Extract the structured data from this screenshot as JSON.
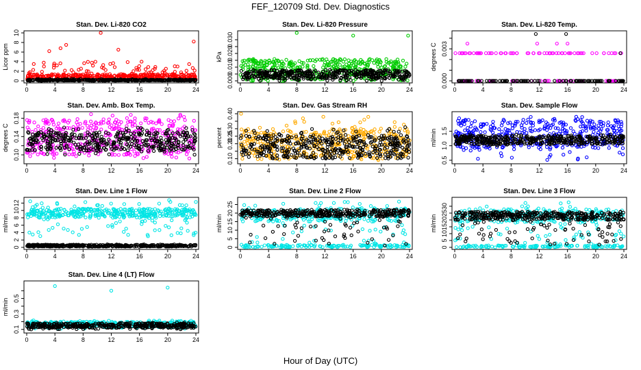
{
  "figure": {
    "title": "FEF_120709  Std. Dev. Diagnostics",
    "x_axis_title": "Hour of Day (UTC)"
  },
  "chart_data": [
    {
      "type": "scatter",
      "title": "Stan. Dev. Li-820 CO2",
      "ylabel": "Licor ppm",
      "xlim": [
        0,
        24
      ],
      "ylim": [
        0,
        10
      ],
      "xticks": [
        0,
        4,
        8,
        12,
        16,
        20,
        24
      ],
      "yticks": [
        0,
        2,
        4,
        6,
        8,
        10
      ],
      "series": [
        {
          "color": "#ff0000",
          "band": [
            0.3,
            1.4
          ],
          "noise": [
            0.8,
            4.0
          ],
          "outliers": [
            [
              10.5,
              10.0
            ],
            [
              23.7,
              8.2
            ],
            [
              4.8,
              6.8
            ],
            [
              5.6,
              7.5
            ],
            [
              13.0,
              6.5
            ],
            [
              3.2,
              6.2
            ]
          ]
        },
        {
          "color": "#000000",
          "band": [
            0.05,
            0.25
          ],
          "noise": [
            0.0,
            0.4
          ],
          "outliers": []
        }
      ]
    },
    {
      "type": "scatter",
      "title": "Stan. Dev. Li-820 Pressure",
      "ylabel": "kPa",
      "xlim": [
        0,
        24
      ],
      "ylim": [
        0,
        0.035
      ],
      "xticks": [
        0,
        4,
        8,
        12,
        16,
        20,
        24
      ],
      "yticks": [
        0,
        0.005,
        0.01,
        0.015,
        0.02,
        0.025,
        0.03
      ],
      "ytick_labels": [
        "0.000",
        "",
        "0.010",
        "",
        "0.020",
        "",
        "0.030"
      ],
      "series": [
        {
          "color": "#00cc00",
          "band": [
            0.004,
            0.016
          ],
          "noise": [
            0.0,
            0.003
          ],
          "outliers": [
            [
              8.0,
              0.035
            ],
            [
              16.0,
              0.033
            ],
            [
              23.8,
              0.033
            ]
          ]
        },
        {
          "color": "#000000",
          "band": [
            0.002,
            0.008
          ],
          "noise": [
            0.0,
            0.004
          ],
          "outliers": []
        }
      ]
    },
    {
      "type": "scatter",
      "title": "Stan. Dev. Li-820 Temp.",
      "ylabel": "degrees C",
      "xlim": [
        0,
        24
      ],
      "ylim": [
        0,
        0.0045
      ],
      "xticks": [
        0,
        4,
        8,
        12,
        16,
        20,
        24
      ],
      "yticks": [
        0,
        0.001,
        0.002,
        0.003,
        0.004
      ],
      "ytick_labels": [
        "0.000",
        "",
        "",
        "0.003",
        ""
      ],
      "series": [
        {
          "color": "#ff00ff",
          "levels": [
            0.0,
            0.0026
          ],
          "outliers": [
            [
              1.8,
              0.0035
            ],
            [
              11.7,
              0.0035
            ],
            [
              14.5,
              0.0035
            ],
            [
              16.0,
              0.0035
            ]
          ]
        },
        {
          "color": "#000000",
          "levels": [
            0.0
          ],
          "outliers": [
            [
              11.5,
              0.0044
            ],
            [
              15.8,
              0.0044
            ],
            [
              23.5,
              0.0026
            ]
          ]
        }
      ]
    },
    {
      "type": "scatter",
      "title": "Stan. Dev. Amb. Box Temp.",
      "ylabel": "degrees C",
      "xlim": [
        0,
        24
      ],
      "ylim": [
        0.085,
        0.19
      ],
      "xticks": [
        0,
        4,
        8,
        12,
        16,
        20,
        24
      ],
      "yticks": [
        0.1,
        0.12,
        0.14,
        0.16,
        0.18
      ],
      "ytick_labels": [
        "0.10",
        "",
        "0.14",
        "",
        "0.18"
      ],
      "series": [
        {
          "color": "#ff00ff",
          "band": [
            0.1,
            0.18
          ],
          "noise": [
            0.09,
            0.19
          ],
          "outliers": []
        },
        {
          "color": "#000000",
          "band": [
            0.11,
            0.15
          ],
          "noise": [
            0.1,
            0.16
          ],
          "outliers": []
        }
      ]
    },
    {
      "type": "scatter",
      "title": "Stan. Dev. Gas Stream RH",
      "ylabel": "percent",
      "xlim": [
        0,
        24
      ],
      "ylim": [
        0.08,
        0.4
      ],
      "xticks": [
        0,
        4,
        8,
        12,
        16,
        20,
        24
      ],
      "yticks": [
        0.1,
        0.15,
        0.2,
        0.25,
        0.3,
        0.35,
        0.4
      ],
      "ytick_labels": [
        "0.10",
        "",
        "0.20",
        "0.25",
        "0.30",
        "",
        "0.40"
      ],
      "series": [
        {
          "color": "#ffaa00",
          "band": [
            0.1,
            0.3
          ],
          "noise": [
            0.09,
            0.38
          ],
          "outliers": [
            [
              0.1,
              0.4
            ]
          ]
        },
        {
          "color": "#000000",
          "band": [
            0.1,
            0.26
          ],
          "noise": [
            0.1,
            0.3
          ],
          "outliers": [
            [
              23.4,
              0.31
            ]
          ]
        }
      ]
    },
    {
      "type": "scatter",
      "title": "Stan. Dev. Sample Flow",
      "ylabel": "ml/min",
      "xlim": [
        0,
        24
      ],
      "ylim": [
        0.45,
        2.1
      ],
      "xticks": [
        0,
        4,
        8,
        12,
        16,
        20,
        24
      ],
      "yticks": [
        0.5,
        1.0,
        1.5
      ],
      "ytick_labels": [
        "0.5",
        "1.0",
        "1.5"
      ],
      "series": [
        {
          "color": "#0000ff",
          "band": [
            0.9,
            1.9
          ],
          "noise": [
            0.5,
            2.0
          ],
          "outliers": []
        },
        {
          "color": "#000000",
          "band": [
            1.05,
            1.35
          ],
          "noise": [
            1.0,
            1.4
          ],
          "outliers": []
        }
      ]
    },
    {
      "type": "scatter",
      "title": "Stan. Dev. Line 1 Flow",
      "ylabel": "ml/min",
      "xlim": [
        0,
        24
      ],
      "ylim": [
        0,
        13
      ],
      "xticks": [
        0,
        4,
        8,
        12,
        16,
        20,
        24
      ],
      "yticks": [
        0,
        2,
        4,
        6,
        8,
        10,
        12
      ],
      "series": [
        {
          "color": "#00e5e5",
          "band": [
            8.0,
            10.5
          ],
          "noise": [
            3.0,
            12.5
          ],
          "outliers": [
            [
              0.5,
              12.5
            ],
            [
              4.3,
              12.0
            ],
            [
              20.2,
              12.8
            ],
            [
              24.0,
              12.3
            ]
          ]
        },
        {
          "color": "#000000",
          "band": [
            0.2,
            0.7
          ],
          "noise": [
            0.1,
            0.8
          ],
          "outliers": []
        }
      ]
    },
    {
      "type": "scatter",
      "title": "Stan. Dev. Line 2 Flow",
      "ylabel": "ml/min",
      "xlim": [
        0,
        24
      ],
      "ylim": [
        0,
        28
      ],
      "xticks": [
        0,
        4,
        8,
        12,
        16,
        20,
        24
      ],
      "yticks": [
        0,
        5,
        10,
        15,
        20,
        25
      ],
      "series": [
        {
          "color": "#00e5e5",
          "band": [
            15.0,
            23.0
          ],
          "noise": [
            1.0,
            27.0
          ],
          "low_band": [
            0.0,
            1.5
          ]
        },
        {
          "color": "#000000",
          "band": [
            18.0,
            22.0
          ],
          "noise": [
            2.0,
            22.0
          ],
          "outliers": [
            [
              20.5,
              1.0
            ],
            [
              23.5,
              2.0
            ]
          ]
        }
      ]
    },
    {
      "type": "scatter",
      "title": "Stan. Dev. Line 3 Flow",
      "ylabel": "ml/min",
      "xlim": [
        0,
        24
      ],
      "ylim": [
        0,
        35
      ],
      "xticks": [
        0,
        4,
        8,
        12,
        16,
        20,
        24
      ],
      "yticks": [
        0,
        5,
        10,
        15,
        20,
        25,
        30
      ],
      "series": [
        {
          "color": "#00e5e5",
          "band": [
            18.0,
            28.0
          ],
          "noise": [
            2.0,
            33.0
          ],
          "low_band": [
            0.0,
            1.5
          ]
        },
        {
          "color": "#000000",
          "band": [
            20.0,
            26.0
          ],
          "noise": [
            2.0,
            26.0
          ],
          "outliers": [
            [
              20.5,
              2.0
            ],
            [
              5.0,
              8.0
            ]
          ]
        }
      ]
    },
    {
      "type": "scatter",
      "title": "Stan. Dev. Line 4 (LT) Flow",
      "ylabel": "ml/min",
      "xlim": [
        0,
        24
      ],
      "ylim": [
        0.08,
        0.7
      ],
      "xticks": [
        0,
        4,
        8,
        12,
        16,
        20,
        24
      ],
      "yticks": [
        0.1,
        0.2,
        0.3,
        0.4,
        0.5,
        0.6
      ],
      "ytick_labels": [
        "0.1",
        "",
        "0.3",
        "",
        "0.5",
        ""
      ],
      "series": [
        {
          "color": "#00e5e5",
          "band": [
            0.13,
            0.2
          ],
          "noise": [
            0.11,
            0.22
          ],
          "outliers": [
            [
              4.0,
              0.66
            ],
            [
              12.0,
              0.6
            ],
            [
              20.0,
              0.64
            ]
          ]
        },
        {
          "color": "#000000",
          "band": [
            0.12,
            0.18
          ],
          "noise": [
            0.1,
            0.19
          ],
          "outliers": []
        }
      ]
    }
  ]
}
